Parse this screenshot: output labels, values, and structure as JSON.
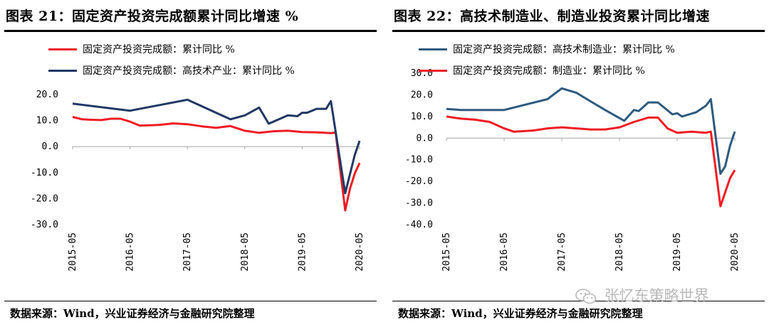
{
  "charts": [
    {
      "title": "图表 21：固定资产投资完成额累计同比增速 %",
      "source": "数据来源：Wind，兴业证券经济与金融研究院整理",
      "chart_data": {
        "type": "line",
        "ylim": [
          -30,
          20
        ],
        "yticks": [
          20,
          10,
          0,
          -10,
          -20,
          -30
        ],
        "ytick_labels": [
          "20.0",
          "10.0",
          "0.0",
          "-10.0",
          "-20.0",
          "-30.0"
        ],
        "xlim": [
          "2015-05",
          "2020-05"
        ],
        "xticks": [
          "2015-05",
          "2016-05",
          "2017-05",
          "2018-05",
          "2019-05",
          "2020-05"
        ],
        "series": [
          {
            "name": "固定资产投资完成额：累计同比 %",
            "color": "#ee1c24",
            "points": [
              [
                "2015-05",
                11.4
              ],
              [
                "2015-07",
                10.5
              ],
              [
                "2015-09",
                10.3
              ],
              [
                "2015-11",
                10.2
              ],
              [
                "2016-01",
                10.7
              ],
              [
                "2016-03",
                10.7
              ],
              [
                "2016-05",
                9.6
              ],
              [
                "2016-07",
                8.1
              ],
              [
                "2016-09",
                8.2
              ],
              [
                "2016-11",
                8.3
              ],
              [
                "2017-02",
                8.9
              ],
              [
                "2017-05",
                8.6
              ],
              [
                "2017-08",
                7.8
              ],
              [
                "2017-11",
                7.2
              ],
              [
                "2018-02",
                7.9
              ],
              [
                "2018-05",
                6.1
              ],
              [
                "2018-08",
                5.3
              ],
              [
                "2018-11",
                5.9
              ],
              [
                "2019-02",
                6.1
              ],
              [
                "2019-05",
                5.6
              ],
              [
                "2019-08",
                5.5
              ],
              [
                "2019-11",
                5.2
              ],
              [
                "2019-12",
                5.4
              ],
              [
                "2020-02",
                -24.5
              ],
              [
                "2020-03",
                -16.1
              ],
              [
                "2020-04",
                -10.3
              ],
              [
                "2020-05",
                -6.3
              ]
            ]
          },
          {
            "name": "固定资产投资完成额：高技术产业：累计同比 %",
            "color": "#203864",
            "points": [
              [
                "2015-05",
                16.5
              ],
              [
                "2016-05",
                13.8
              ],
              [
                "2017-05",
                18.0
              ],
              [
                "2018-02",
                10.5
              ],
              [
                "2018-05",
                12.0
              ],
              [
                "2018-08",
                15.0
              ],
              [
                "2018-10",
                8.8
              ],
              [
                "2019-02",
                12.0
              ],
              [
                "2019-04",
                11.7
              ],
              [
                "2019-05",
                13.0
              ],
              [
                "2019-06",
                13.0
              ],
              [
                "2019-08",
                14.5
              ],
              [
                "2019-10",
                14.5
              ],
              [
                "2019-11",
                17.5
              ],
              [
                "2020-02",
                -17.9
              ],
              [
                "2020-04",
                -3.2
              ],
              [
                "2020-05",
                2.2
              ]
            ]
          }
        ]
      }
    },
    {
      "title": "图表 22：高技术制造业、制造业投资累计同比增速",
      "source": "数据来源：Wind，兴业证券经济与金融研究院整理",
      "chart_data": {
        "type": "line",
        "ylim": [
          -40,
          30
        ],
        "yticks": [
          30,
          20,
          10,
          0,
          -10,
          -20,
          -30,
          -40
        ],
        "ytick_labels": [
          "30.0",
          "20.0",
          "10.0",
          "0.0",
          "-10.0",
          "-20.0",
          "-30.0",
          "-40.0"
        ],
        "xlim": [
          "2015-05",
          "2020-05"
        ],
        "xticks": [
          "2015-05",
          "2016-05",
          "2017-05",
          "2018-05",
          "2019-05",
          "2020-05"
        ],
        "series": [
          {
            "name": "固定资产投资完成额：高技术制造业：累计同比 %",
            "color": "#2e5a7e",
            "points": [
              [
                "2015-05",
                13.5
              ],
              [
                "2015-08",
                13.0
              ],
              [
                "2016-05",
                13.0
              ],
              [
                "2017-02",
                18.0
              ],
              [
                "2017-05",
                23.0
              ],
              [
                "2017-08",
                21.0
              ],
              [
                "2017-11",
                17.0
              ],
              [
                "2018-02",
                13.0
              ],
              [
                "2018-06",
                8.0
              ],
              [
                "2018-08",
                13.0
              ],
              [
                "2018-09",
                12.5
              ],
              [
                "2018-11",
                16.5
              ],
              [
                "2019-01",
                16.5
              ],
              [
                "2019-04",
                11.0
              ],
              [
                "2019-05",
                11.5
              ],
              [
                "2019-06",
                10.0
              ],
              [
                "2019-09",
                12.0
              ],
              [
                "2019-11",
                15.0
              ],
              [
                "2019-12",
                18.0
              ],
              [
                "2020-02",
                -16.5
              ],
              [
                "2020-03",
                -13.0
              ],
              [
                "2020-04",
                -3.5
              ],
              [
                "2020-05",
                3.0
              ]
            ]
          },
          {
            "name": "固定资产投资完成额：制造业：累计同比 %",
            "color": "#ee1c24",
            "points": [
              [
                "2015-05",
                10.0
              ],
              [
                "2015-08",
                9.0
              ],
              [
                "2015-11",
                8.5
              ],
              [
                "2016-02",
                7.5
              ],
              [
                "2016-05",
                4.5
              ],
              [
                "2016-07",
                3.0
              ],
              [
                "2016-11",
                3.5
              ],
              [
                "2017-02",
                4.5
              ],
              [
                "2017-05",
                5.0
              ],
              [
                "2017-08",
                4.5
              ],
              [
                "2017-11",
                4.0
              ],
              [
                "2018-02",
                4.0
              ],
              [
                "2018-05",
                5.0
              ],
              [
                "2018-08",
                7.5
              ],
              [
                "2018-11",
                9.5
              ],
              [
                "2019-01",
                9.5
              ],
              [
                "2019-03",
                4.5
              ],
              [
                "2019-05",
                2.5
              ],
              [
                "2019-08",
                3.0
              ],
              [
                "2019-11",
                2.5
              ],
              [
                "2019-12",
                3.0
              ],
              [
                "2020-02",
                -31.5
              ],
              [
                "2020-04",
                -18.5
              ],
              [
                "2020-05",
                -14.8
              ]
            ]
          }
        ]
      }
    }
  ],
  "watermark": "张忆东策略世界"
}
